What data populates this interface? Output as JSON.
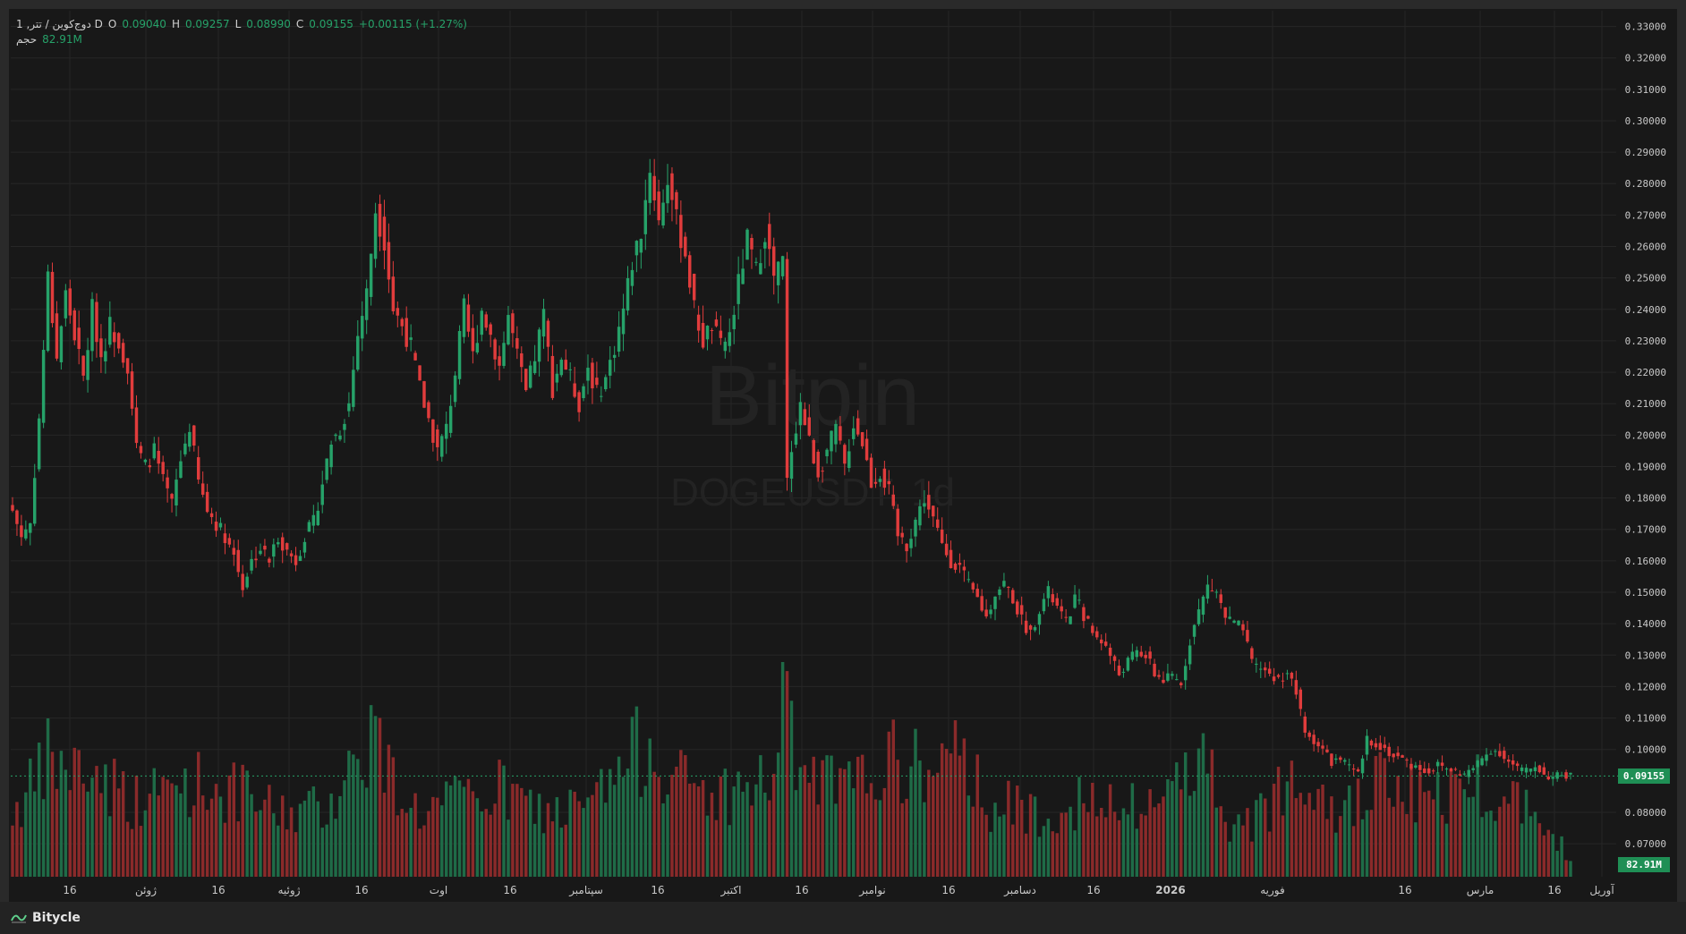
{
  "legend": {
    "symbol": "1 ,دوج‌کوین / تتر D",
    "o_label": "O",
    "o_value": "0.09040",
    "h_label": "H",
    "h_value": "0.09257",
    "l_label": "L",
    "l_value": "0.08990",
    "c_label": "C",
    "c_value": "0.09155",
    "change": "+0.00115 (+1.27%)",
    "volume_label": "حجم",
    "volume_value": "82.91M"
  },
  "watermark": {
    "brand": "Bitpin",
    "symbol": "DOGEUSDT, 1d"
  },
  "footer": {
    "brand": "Bitycle"
  },
  "colors": {
    "up": "#26a269",
    "down": "#e03c3c",
    "background": "#181818",
    "grid": "#262626",
    "price_line": "#26a269"
  },
  "chart_data": {
    "type": "candlestick",
    "symbol": "DOGEUSDT",
    "interval": "1d",
    "y_axis": {
      "ticks": [
        "0.33000",
        "0.32000",
        "0.31000",
        "0.30000",
        "0.29000",
        "0.28000",
        "0.27000",
        "0.26000",
        "0.25000",
        "0.24000",
        "0.23000",
        "0.22000",
        "0.21000",
        "0.20000",
        "0.19000",
        "0.18000",
        "0.17000",
        "0.16000",
        "0.15000",
        "0.14000",
        "0.13000",
        "0.12000",
        "0.11000",
        "0.10000",
        "0.08000",
        "0.07000"
      ],
      "range": [
        0.0595,
        0.335
      ]
    },
    "x_axis": {
      "labels": [
        "16",
        "ژوئن",
        "16",
        "ژوئیه",
        "16",
        "اوت",
        "16",
        "سپتامبر",
        "16",
        "اکتبر",
        "16",
        "نوامبر",
        "16",
        "دسامبر",
        "16",
        "2026",
        "فوریه",
        "16",
        "مارس",
        "16",
        "آوریل"
      ]
    },
    "last_price": "0.09155",
    "last_volume": "82.91M",
    "anchors": [
      [
        0,
        0.176
      ],
      [
        2,
        0.168
      ],
      [
        4,
        0.172
      ],
      [
        6,
        0.205
      ],
      [
        8,
        0.25
      ],
      [
        10,
        0.225
      ],
      [
        12,
        0.245
      ],
      [
        14,
        0.232
      ],
      [
        16,
        0.218
      ],
      [
        18,
        0.24
      ],
      [
        20,
        0.225
      ],
      [
        22,
        0.235
      ],
      [
        24,
        0.23
      ],
      [
        26,
        0.222
      ],
      [
        28,
        0.196
      ],
      [
        30,
        0.19
      ],
      [
        32,
        0.195
      ],
      [
        34,
        0.185
      ],
      [
        36,
        0.178
      ],
      [
        38,
        0.192
      ],
      [
        40,
        0.203
      ],
      [
        42,
        0.185
      ],
      [
        44,
        0.176
      ],
      [
        46,
        0.172
      ],
      [
        48,
        0.168
      ],
      [
        50,
        0.162
      ],
      [
        52,
        0.152
      ],
      [
        54,
        0.16
      ],
      [
        56,
        0.164
      ],
      [
        58,
        0.16
      ],
      [
        60,
        0.168
      ],
      [
        62,
        0.163
      ],
      [
        64,
        0.16
      ],
      [
        66,
        0.168
      ],
      [
        68,
        0.172
      ],
      [
        70,
        0.185
      ],
      [
        72,
        0.198
      ],
      [
        74,
        0.202
      ],
      [
        76,
        0.21
      ],
      [
        78,
        0.232
      ],
      [
        80,
        0.245
      ],
      [
        82,
        0.272
      ],
      [
        84,
        0.262
      ],
      [
        86,
        0.24
      ],
      [
        88,
        0.235
      ],
      [
        90,
        0.228
      ],
      [
        92,
        0.215
      ],
      [
        94,
        0.205
      ],
      [
        96,
        0.195
      ],
      [
        98,
        0.202
      ],
      [
        100,
        0.22
      ],
      [
        102,
        0.24
      ],
      [
        104,
        0.225
      ],
      [
        106,
        0.24
      ],
      [
        108,
        0.232
      ],
      [
        110,
        0.222
      ],
      [
        112,
        0.238
      ],
      [
        114,
        0.225
      ],
      [
        116,
        0.213
      ],
      [
        118,
        0.225
      ],
      [
        120,
        0.238
      ],
      [
        122,
        0.215
      ],
      [
        124,
        0.225
      ],
      [
        126,
        0.218
      ],
      [
        128,
        0.21
      ],
      [
        130,
        0.222
      ],
      [
        132,
        0.213
      ],
      [
        134,
        0.218
      ],
      [
        136,
        0.228
      ],
      [
        138,
        0.24
      ],
      [
        140,
        0.255
      ],
      [
        142,
        0.265
      ],
      [
        144,
        0.285
      ],
      [
        146,
        0.268
      ],
      [
        148,
        0.282
      ],
      [
        150,
        0.268
      ],
      [
        152,
        0.258
      ],
      [
        154,
        0.24
      ],
      [
        156,
        0.23
      ],
      [
        158,
        0.235
      ],
      [
        160,
        0.228
      ],
      [
        162,
        0.232
      ],
      [
        164,
        0.248
      ],
      [
        166,
        0.262
      ],
      [
        168,
        0.252
      ],
      [
        170,
        0.265
      ],
      [
        172,
        0.25
      ],
      [
        174,
        0.255
      ],
      [
        175,
        0.185
      ],
      [
        176,
        0.196
      ],
      [
        178,
        0.21
      ],
      [
        180,
        0.198
      ],
      [
        182,
        0.188
      ],
      [
        184,
        0.195
      ],
      [
        186,
        0.202
      ],
      [
        188,
        0.19
      ],
      [
        190,
        0.204
      ],
      [
        192,
        0.198
      ],
      [
        194,
        0.185
      ],
      [
        196,
        0.188
      ],
      [
        198,
        0.182
      ],
      [
        200,
        0.168
      ],
      [
        202,
        0.165
      ],
      [
        204,
        0.173
      ],
      [
        206,
        0.18
      ],
      [
        208,
        0.173
      ],
      [
        210,
        0.165
      ],
      [
        212,
        0.16
      ],
      [
        214,
        0.158
      ],
      [
        216,
        0.152
      ],
      [
        218,
        0.148
      ],
      [
        220,
        0.142
      ],
      [
        222,
        0.15
      ],
      [
        224,
        0.153
      ],
      [
        226,
        0.148
      ],
      [
        228,
        0.141
      ],
      [
        230,
        0.137
      ],
      [
        232,
        0.145
      ],
      [
        234,
        0.15
      ],
      [
        236,
        0.145
      ],
      [
        238,
        0.14
      ],
      [
        240,
        0.148
      ],
      [
        242,
        0.143
      ],
      [
        244,
        0.137
      ],
      [
        246,
        0.135
      ],
      [
        248,
        0.13
      ],
      [
        250,
        0.124
      ],
      [
        252,
        0.128
      ],
      [
        254,
        0.131
      ],
      [
        256,
        0.13
      ],
      [
        258,
        0.124
      ],
      [
        260,
        0.122
      ],
      [
        262,
        0.123
      ],
      [
        264,
        0.121
      ],
      [
        266,
        0.135
      ],
      [
        268,
        0.144
      ],
      [
        270,
        0.152
      ],
      [
        272,
        0.15
      ],
      [
        274,
        0.142
      ],
      [
        276,
        0.14
      ],
      [
        278,
        0.138
      ],
      [
        280,
        0.127
      ],
      [
        282,
        0.126
      ],
      [
        284,
        0.124
      ],
      [
        286,
        0.122
      ],
      [
        288,
        0.125
      ],
      [
        290,
        0.118
      ],
      [
        292,
        0.105
      ],
      [
        294,
        0.103
      ],
      [
        296,
        0.1
      ],
      [
        298,
        0.096
      ],
      [
        300,
        0.097
      ],
      [
        302,
        0.094
      ],
      [
        304,
        0.092
      ],
      [
        306,
        0.103
      ],
      [
        308,
        0.102
      ],
      [
        310,
        0.1
      ],
      [
        312,
        0.098
      ],
      [
        314,
        0.097
      ],
      [
        316,
        0.095
      ],
      [
        318,
        0.094
      ],
      [
        320,
        0.093
      ],
      [
        322,
        0.095
      ],
      [
        324,
        0.094
      ],
      [
        326,
        0.093
      ],
      [
        328,
        0.092
      ],
      [
        330,
        0.094
      ],
      [
        332,
        0.097
      ],
      [
        334,
        0.1
      ],
      [
        336,
        0.099
      ],
      [
        338,
        0.096
      ],
      [
        340,
        0.094
      ],
      [
        342,
        0.093
      ],
      [
        344,
        0.095
      ],
      [
        346,
        0.092
      ],
      [
        348,
        0.091
      ],
      [
        350,
        0.092
      ],
      [
        352,
        0.0915
      ]
    ],
    "volume_anchors": [
      [
        0,
        0.3
      ],
      [
        6,
        0.45
      ],
      [
        8,
        0.55
      ],
      [
        12,
        0.5
      ],
      [
        20,
        0.48
      ],
      [
        28,
        0.35
      ],
      [
        40,
        0.45
      ],
      [
        52,
        0.38
      ],
      [
        60,
        0.3
      ],
      [
        70,
        0.32
      ],
      [
        78,
        0.55
      ],
      [
        82,
        0.72
      ],
      [
        84,
        0.5
      ],
      [
        92,
        0.3
      ],
      [
        100,
        0.35
      ],
      [
        110,
        0.4
      ],
      [
        120,
        0.3
      ],
      [
        130,
        0.32
      ],
      [
        140,
        0.55
      ],
      [
        144,
        0.65
      ],
      [
        150,
        0.45
      ],
      [
        160,
        0.38
      ],
      [
        172,
        0.45
      ],
      [
        174,
        1.0
      ],
      [
        176,
        0.6
      ],
      [
        180,
        0.45
      ],
      [
        190,
        0.4
      ],
      [
        196,
        0.55
      ],
      [
        200,
        0.52
      ],
      [
        210,
        0.5
      ],
      [
        216,
        0.55
      ],
      [
        220,
        0.35
      ],
      [
        230,
        0.3
      ],
      [
        240,
        0.35
      ],
      [
        250,
        0.3
      ],
      [
        260,
        0.35
      ],
      [
        264,
        0.52
      ],
      [
        266,
        0.6
      ],
      [
        272,
        0.45
      ],
      [
        276,
        0.2
      ],
      [
        280,
        0.25
      ],
      [
        284,
        0.35
      ],
      [
        290,
        0.55
      ],
      [
        294,
        0.5
      ],
      [
        300,
        0.3
      ],
      [
        304,
        0.35
      ],
      [
        310,
        0.45
      ],
      [
        320,
        0.35
      ],
      [
        330,
        0.45
      ],
      [
        340,
        0.35
      ],
      [
        346,
        0.32
      ],
      [
        352,
        0.08
      ]
    ]
  }
}
